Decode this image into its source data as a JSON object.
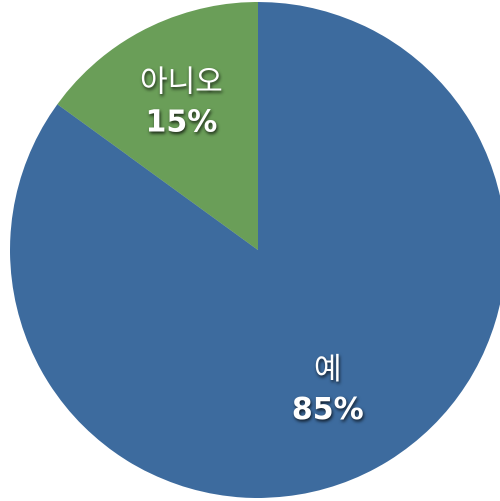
{
  "chart_data": {
    "type": "pie",
    "slices": [
      {
        "label": "예",
        "value": 85,
        "value_label": "85%",
        "color": "#3d6b9e"
      },
      {
        "label": "아니오",
        "value": 15,
        "value_label": "15%",
        "color": "#6a9e58"
      }
    ],
    "start_angle_deg": 0,
    "direction": "clockwise"
  }
}
